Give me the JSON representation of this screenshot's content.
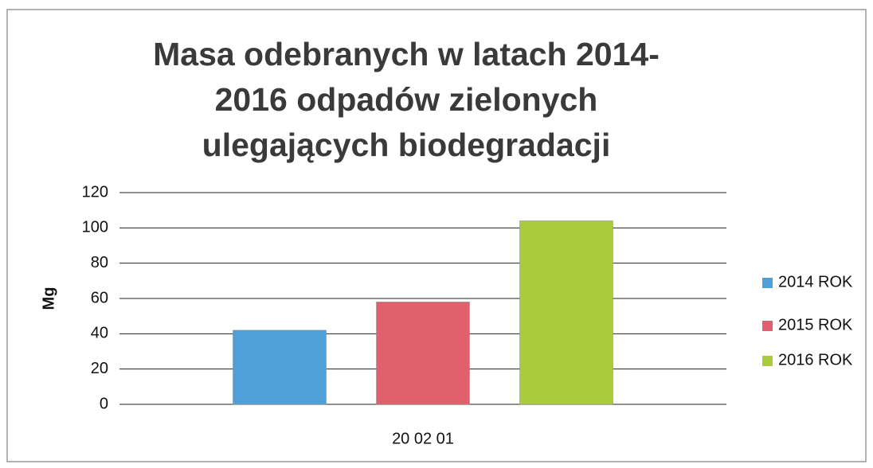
{
  "chart_data": {
    "type": "bar",
    "title": "Masa odebranych w latach 2014-2016 odpadów zielonych ulegających biodegradacji",
    "y_label": "Mg",
    "categories": [
      "20 02 01"
    ],
    "series": [
      {
        "name": "2014 ROK",
        "color": "#4f9fd8",
        "values": [
          42
        ]
      },
      {
        "name": "2015 ROK",
        "color": "#e0606e",
        "values": [
          58
        ]
      },
      {
        "name": "2016 ROK",
        "color": "#a9cc3c",
        "values": [
          104
        ]
      }
    ],
    "ylim": [
      0,
      120
    ],
    "yticks": [
      0,
      20,
      40,
      60,
      80,
      100,
      120
    ],
    "grid": true,
    "legend": "right"
  }
}
